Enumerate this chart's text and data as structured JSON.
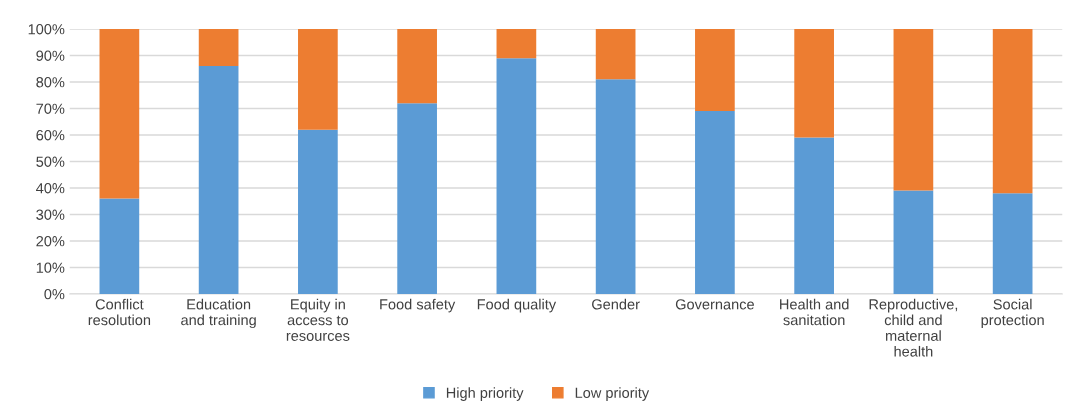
{
  "chart_data": {
    "type": "bar",
    "stacked": true,
    "categories": [
      "Conflict\nresolution",
      "Education\nand training",
      "Equity in\naccess to\nresources",
      "Food safety",
      "Food quality",
      "Gender",
      "Governance",
      "Health and\nsanitation",
      "Reproductive,\nchild and\nmaternal\nhealth",
      "Social\nprotection"
    ],
    "series": [
      {
        "name": "High priority",
        "color": "#5b9bd5",
        "values": [
          36,
          86,
          62,
          72,
          89,
          81,
          69,
          59,
          39,
          38
        ]
      },
      {
        "name": "Low priority",
        "color": "#ed7d31",
        "values": [
          64,
          14,
          38,
          28,
          11,
          19,
          31,
          41,
          61,
          62
        ]
      }
    ],
    "ylim": [
      0,
      100
    ],
    "yticks": [
      {
        "value": 0,
        "label": "0%"
      },
      {
        "value": 10,
        "label": "10%"
      },
      {
        "value": 20,
        "label": "20%"
      },
      {
        "value": 30,
        "label": "30%"
      },
      {
        "value": 40,
        "label": "40%"
      },
      {
        "value": 50,
        "label": "50%"
      },
      {
        "value": 60,
        "label": "60%"
      },
      {
        "value": 70,
        "label": "70%"
      },
      {
        "value": 80,
        "label": "80%"
      },
      {
        "value": 90,
        "label": "90%"
      },
      {
        "value": 100,
        "label": "100%"
      }
    ],
    "grid": "y",
    "legend": "bottom"
  }
}
